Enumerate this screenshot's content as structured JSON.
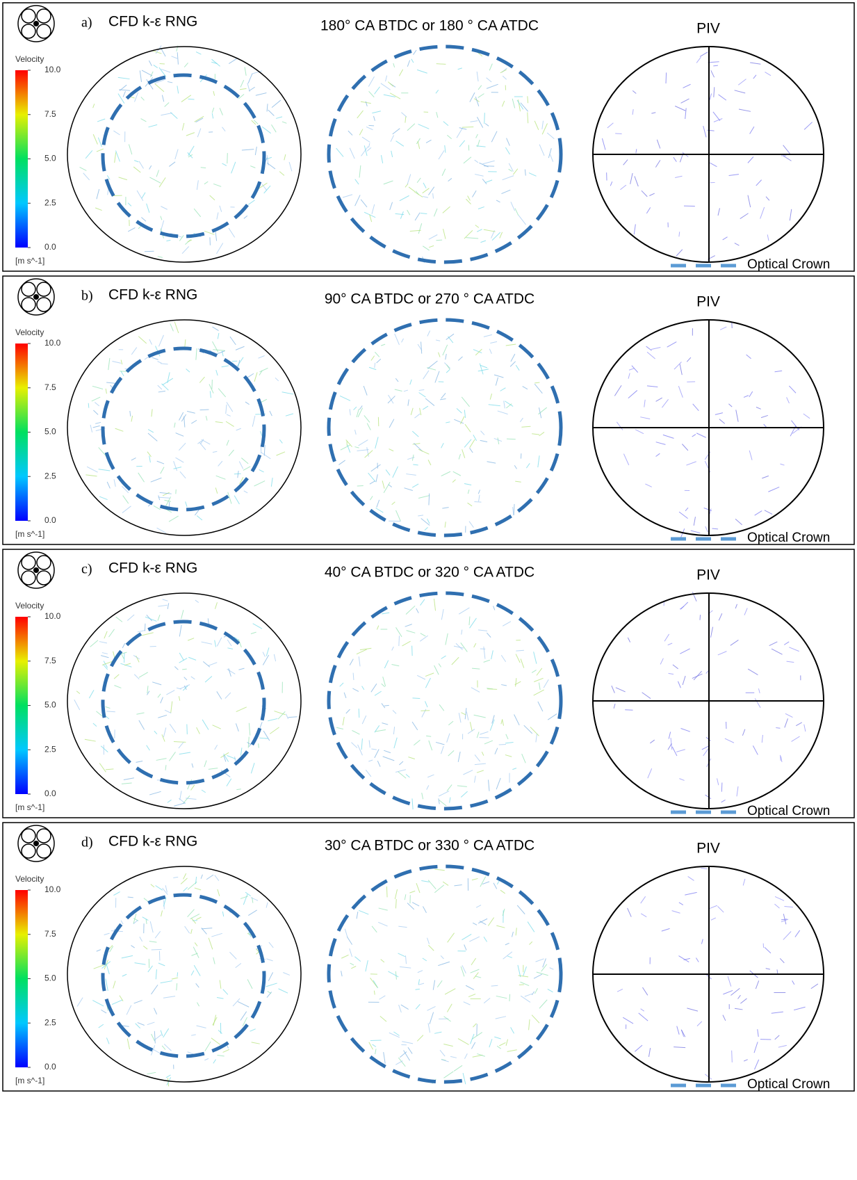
{
  "figure": {
    "panels": [
      {
        "label": "a)",
        "method": "CFD k-ε RNG",
        "title": "180° CA BTDC or 180 ° CA ATDC",
        "piv": "PIV",
        "colorbar": {
          "title": "Velocity",
          "ticks": [
            "10.0",
            "7.5",
            "5.0",
            "2.5",
            "0.0"
          ],
          "unit": "[m s^-1]"
        },
        "legend": "Optical Crown"
      },
      {
        "label": "b)",
        "method": "CFD k-ε RNG",
        "title": "90° CA BTDC or 270 ° CA ATDC",
        "piv": "PIV",
        "colorbar": {
          "title": "Velocity",
          "ticks": [
            "10.0",
            "7.5",
            "5.0",
            "2.5",
            "0.0"
          ],
          "unit": "[m s^-1]"
        },
        "legend": "Optical Crown"
      },
      {
        "label": "c)",
        "method": "CFD k-ε RNG",
        "title": "40° CA BTDC or 320 ° CA ATDC",
        "piv": "PIV",
        "colorbar": {
          "title": "Velocity",
          "ticks": [
            "10.0",
            "7.5",
            "5.0",
            "2.5",
            "0.0"
          ],
          "unit": "[m s^-1]"
        },
        "legend": "Optical Crown"
      },
      {
        "label": "d)",
        "method": "CFD k-ε RNG",
        "title": "30° CA BTDC or 330 ° CA ATDC",
        "piv": "PIV",
        "colorbar": {
          "title": "Velocity",
          "ticks": [
            "10.0",
            "7.5",
            "5.0",
            "2.5",
            "0.0"
          ],
          "unit": "[m s^-1]"
        },
        "legend": "Optical Crown"
      }
    ]
  }
}
